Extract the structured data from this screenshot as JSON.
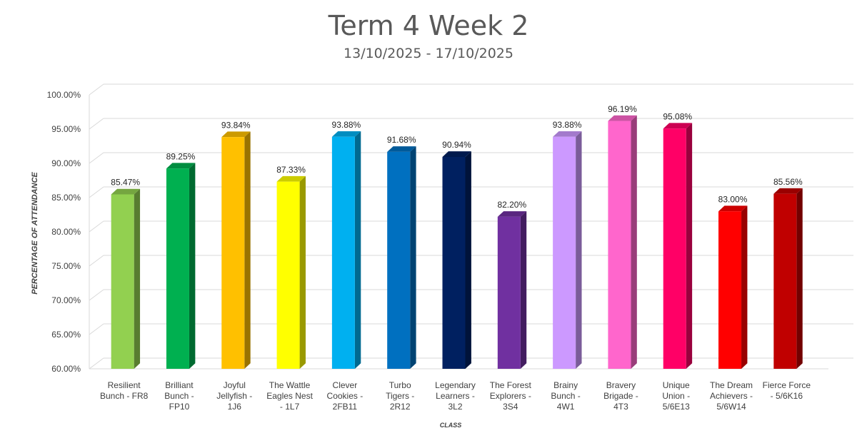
{
  "chart_data": {
    "type": "bar",
    "title": "Term 4 Week 2",
    "subtitle": "13/10/2025 - 17/10/2025",
    "xlabel": "CLASS",
    "ylabel": "PERCENTAGE OF ATTENDANCE",
    "ylim": [
      60,
      100
    ],
    "yticks": [
      "60.00%",
      "65.00%",
      "70.00%",
      "75.00%",
      "80.00%",
      "85.00%",
      "90.00%",
      "95.00%",
      "100.00%"
    ],
    "grid": true,
    "style": "3d-column",
    "categories": [
      [
        "Resilient",
        "Bunch - FR8"
      ],
      [
        "Brilliant",
        "Bunch -",
        "FP10"
      ],
      [
        "Joyful",
        "Jellyfish -",
        "1J6"
      ],
      [
        "The Wattle",
        "Eagles Nest",
        "- 1L7"
      ],
      [
        "Clever",
        "Cookies -",
        "2FB11"
      ],
      [
        "Turbo",
        "Tigers -",
        "2R12"
      ],
      [
        "Legendary",
        "Learners -",
        "3L2"
      ],
      [
        "The Forest",
        "Explorers -",
        "3S4"
      ],
      [
        "Brainy",
        "Bunch -",
        "4W1"
      ],
      [
        "Bravery",
        "Brigade -",
        "4T3"
      ],
      [
        "Unique",
        "Union -",
        "5/6E13"
      ],
      [
        "The Dream",
        "Achievers -",
        "5/6W14"
      ],
      [
        "Fierce Force",
        "- 5/6K16"
      ]
    ],
    "values": [
      85.47,
      89.25,
      93.84,
      87.33,
      93.88,
      91.68,
      90.94,
      82.2,
      93.88,
      96.19,
      95.08,
      83.0,
      85.56
    ],
    "value_labels": [
      "85.47%",
      "89.25%",
      "93.84%",
      "87.33%",
      "93.88%",
      "91.68%",
      "90.94%",
      "82.20%",
      "93.88%",
      "96.19%",
      "95.08%",
      "83.00%",
      "85.56%"
    ],
    "colors": [
      "#92D050",
      "#00B050",
      "#FFC000",
      "#FFFF00",
      "#00B0F0",
      "#0070C0",
      "#002060",
      "#7030A0",
      "#CC99FF",
      "#FF66CC",
      "#FF0066",
      "#FF0000",
      "#C00000"
    ]
  }
}
